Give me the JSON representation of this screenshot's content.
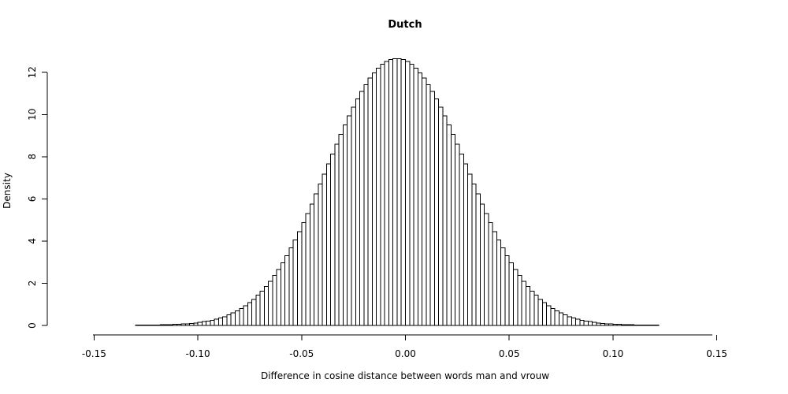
{
  "chart_data": {
    "type": "bar",
    "title": "Dutch",
    "xlabel": "Difference in cosine distance between words man and vrouw",
    "ylabel": "Density",
    "xlim": [
      -0.16,
      0.16
    ],
    "ylim": [
      0,
      12.7
    ],
    "xticks": [
      -0.15,
      -0.1,
      -0.05,
      0.0,
      0.05,
      0.1,
      0.15
    ],
    "xtick_labels": [
      "-0.15",
      "-0.10",
      "-0.05",
      "0.00",
      "0.05",
      "0.10",
      "0.15"
    ],
    "yticks": [
      0,
      2,
      4,
      6,
      8,
      10,
      12
    ],
    "ytick_labels": [
      "0",
      "2",
      "4",
      "6",
      "8",
      "10",
      "12"
    ],
    "bin_width": 0.002,
    "bin_start": -0.16,
    "values": [
      0.0,
      0.0,
      0.0,
      0.0,
      0.0,
      0.0,
      0.0,
      0.0,
      0.0,
      0.0,
      0.0,
      0.0,
      0.0,
      0.0,
      0.0,
      0.01,
      0.01,
      0.01,
      0.01,
      0.02,
      0.02,
      0.03,
      0.03,
      0.04,
      0.05,
      0.06,
      0.07,
      0.08,
      0.1,
      0.12,
      0.15,
      0.18,
      0.21,
      0.25,
      0.3,
      0.36,
      0.42,
      0.5,
      0.59,
      0.69,
      0.8,
      0.93,
      1.08,
      1.24,
      1.43,
      1.63,
      1.85,
      2.1,
      2.37,
      2.66,
      2.97,
      3.31,
      3.67,
      4.05,
      4.45,
      4.87,
      5.31,
      5.76,
      6.23,
      6.7,
      7.17,
      7.65,
      8.12,
      8.59,
      9.05,
      9.5,
      9.93,
      10.34,
      10.73,
      11.09,
      11.42,
      11.72,
      11.98,
      12.2,
      12.38,
      12.51,
      12.6,
      12.65,
      12.65,
      12.6,
      12.51,
      12.38,
      12.2,
      11.98,
      11.72,
      11.42,
      11.09,
      10.73,
      10.34,
      9.93,
      9.5,
      9.05,
      8.59,
      8.12,
      7.65,
      7.17,
      6.7,
      6.23,
      5.76,
      5.31,
      4.87,
      4.45,
      4.05,
      3.67,
      3.31,
      2.97,
      2.66,
      2.37,
      2.1,
      1.85,
      1.63,
      1.43,
      1.24,
      1.08,
      0.93,
      0.8,
      0.69,
      0.59,
      0.5,
      0.42,
      0.36,
      0.3,
      0.25,
      0.21,
      0.18,
      0.15,
      0.12,
      0.1,
      0.08,
      0.07,
      0.06,
      0.05,
      0.04,
      0.03,
      0.03,
      0.02,
      0.02,
      0.01,
      0.01,
      0.01,
      0.01,
      0.0,
      0.0,
      0.0,
      0.0,
      0.0,
      0.0,
      0.0,
      0.0,
      0.0,
      0.0,
      0.0,
      0.0,
      0.0,
      0.0,
      0.0,
      0.0
    ],
    "grid": false,
    "legend": "none"
  }
}
